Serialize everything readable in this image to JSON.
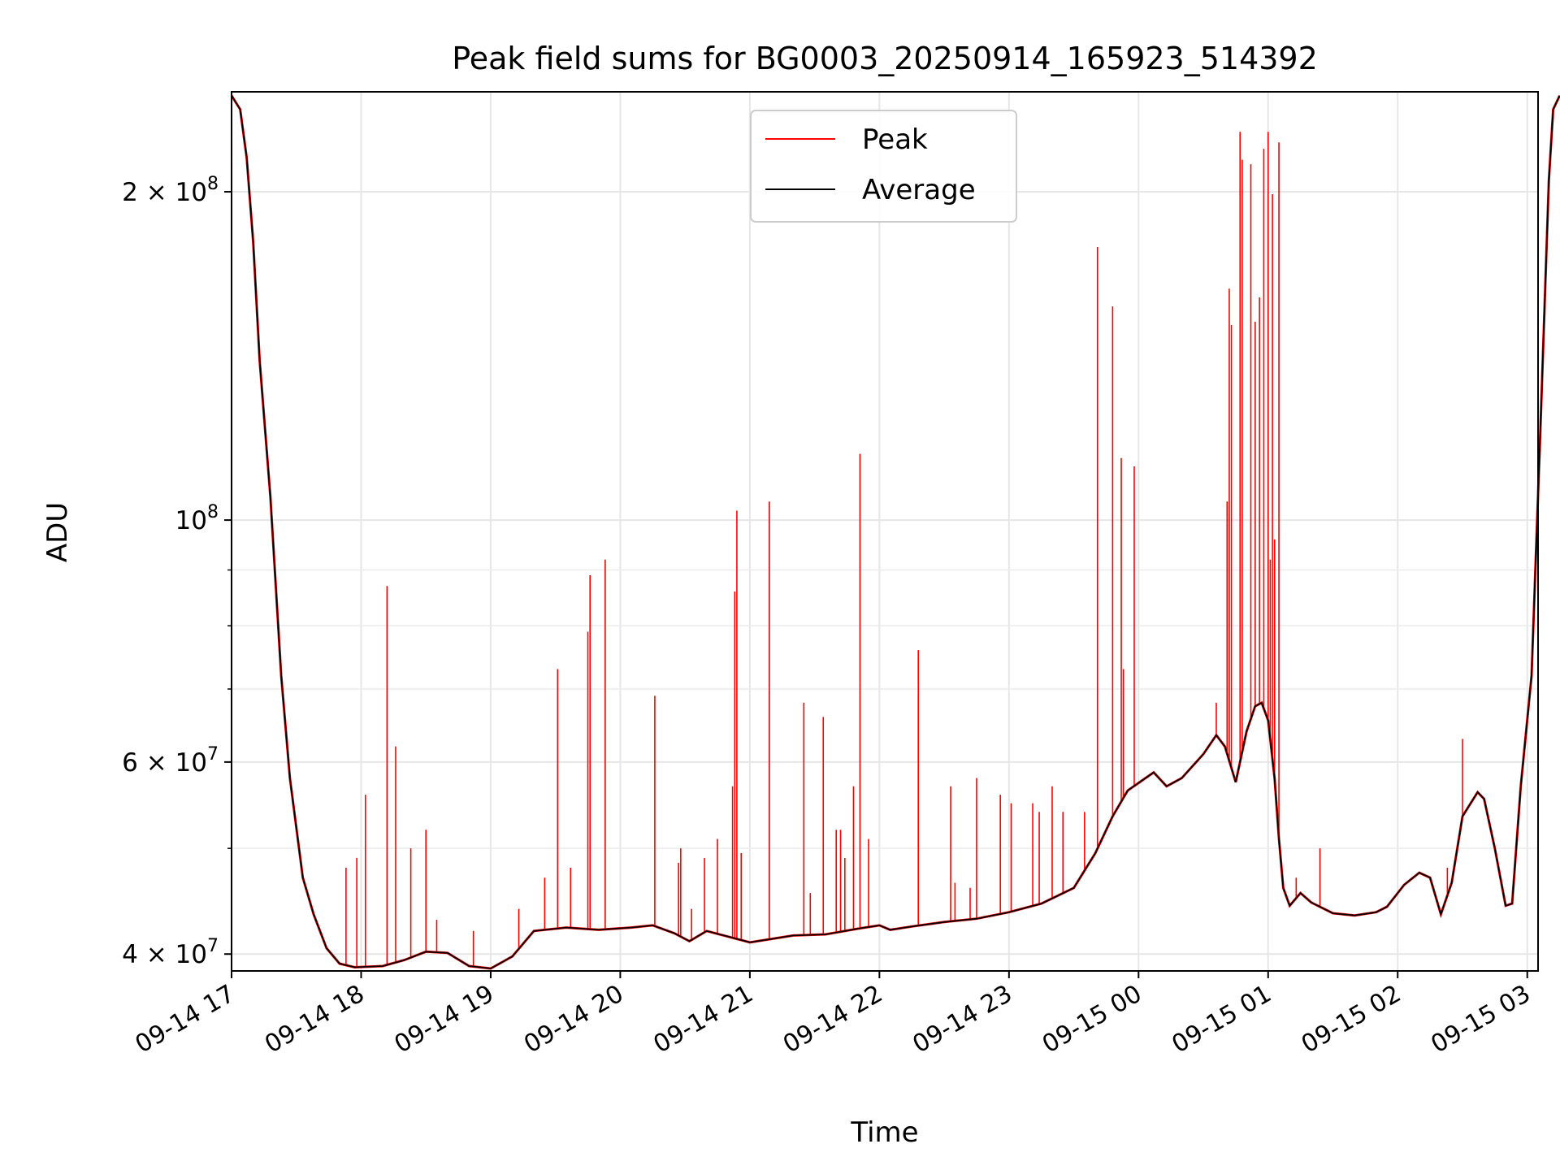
{
  "chart_data": {
    "type": "line",
    "title": "Peak field sums for BG0003_20250914_165923_514392",
    "xlabel": "Time",
    "ylabel": "ADU",
    "yscale": "log",
    "ylim": [
      38600000,
      247000000
    ],
    "xlim": [
      "2025-09-14T17:00",
      "2025-09-15T03:05"
    ],
    "grid": true,
    "legend": "top-center",
    "x_ticks": [
      {
        "t": "2025-09-14T17:00",
        "label": "09-14 17"
      },
      {
        "t": "2025-09-14T18:00",
        "label": "09-14 18"
      },
      {
        "t": "2025-09-14T19:00",
        "label": "09-14 19"
      },
      {
        "t": "2025-09-14T20:00",
        "label": "09-14 20"
      },
      {
        "t": "2025-09-14T21:00",
        "label": "09-14 21"
      },
      {
        "t": "2025-09-14T22:00",
        "label": "09-14 22"
      },
      {
        "t": "2025-09-14T23:00",
        "label": "09-14 23"
      },
      {
        "t": "2025-09-15T00:00",
        "label": "09-15 00"
      },
      {
        "t": "2025-09-15T01:00",
        "label": "09-15 01"
      },
      {
        "t": "2025-09-15T02:00",
        "label": "09-15 02"
      },
      {
        "t": "2025-09-15T03:00",
        "label": "09-15 03"
      }
    ],
    "y_ticks_major": [
      {
        "value": 40000000,
        "label": "4 × 10",
        "exp": "7"
      },
      {
        "value": 60000000,
        "label": "6 × 10",
        "exp": "7"
      },
      {
        "value": 100000000,
        "label": "10",
        "exp": "8"
      },
      {
        "value": 200000000,
        "label": "2 × 10",
        "exp": "8"
      }
    ],
    "y_ticks_minor": [
      50000000,
      70000000,
      80000000,
      90000000
    ],
    "series": [
      {
        "name": "Average",
        "color": "#000000",
        "points": [
          [
            "2025-09-14T17:00",
            245000000
          ],
          [
            "2025-09-14T17:04",
            238000000
          ],
          [
            "2025-09-14T17:07",
            215000000
          ],
          [
            "2025-09-14T17:10",
            180000000
          ],
          [
            "2025-09-14T17:13",
            140000000
          ],
          [
            "2025-09-14T17:18",
            105000000
          ],
          [
            "2025-09-14T17:23",
            72000000
          ],
          [
            "2025-09-14T17:27",
            58000000
          ],
          [
            "2025-09-14T17:33",
            47000000
          ],
          [
            "2025-09-14T17:38",
            43500000
          ],
          [
            "2025-09-14T17:44",
            40500000
          ],
          [
            "2025-09-14T17:50",
            39200000
          ],
          [
            "2025-09-14T17:57",
            38900000
          ],
          [
            "2025-09-14T18:10",
            39000000
          ],
          [
            "2025-09-14T18:20",
            39500000
          ],
          [
            "2025-09-14T18:30",
            40200000
          ],
          [
            "2025-09-14T18:40",
            40100000
          ],
          [
            "2025-09-14T18:50",
            39000000
          ],
          [
            "2025-09-14T19:00",
            38800000
          ],
          [
            "2025-09-14T19:10",
            39800000
          ],
          [
            "2025-09-14T19:20",
            42000000
          ],
          [
            "2025-09-14T19:35",
            42300000
          ],
          [
            "2025-09-14T19:50",
            42100000
          ],
          [
            "2025-09-14T20:05",
            42300000
          ],
          [
            "2025-09-14T20:15",
            42500000
          ],
          [
            "2025-09-14T20:25",
            41800000
          ],
          [
            "2025-09-14T20:32",
            41100000
          ],
          [
            "2025-09-14T20:40",
            42000000
          ],
          [
            "2025-09-14T20:48",
            41600000
          ],
          [
            "2025-09-14T21:00",
            41000000
          ],
          [
            "2025-09-14T21:10",
            41300000
          ],
          [
            "2025-09-14T21:20",
            41600000
          ],
          [
            "2025-09-14T21:35",
            41700000
          ],
          [
            "2025-09-14T21:50",
            42200000
          ],
          [
            "2025-09-14T22:00",
            42500000
          ],
          [
            "2025-09-14T22:05",
            42100000
          ],
          [
            "2025-09-14T22:15",
            42400000
          ],
          [
            "2025-09-14T22:30",
            42800000
          ],
          [
            "2025-09-14T22:45",
            43100000
          ],
          [
            "2025-09-14T23:00",
            43700000
          ],
          [
            "2025-09-14T23:15",
            44500000
          ],
          [
            "2025-09-14T23:30",
            46000000
          ],
          [
            "2025-09-14T23:40",
            49500000
          ],
          [
            "2025-09-14T23:48",
            53500000
          ],
          [
            "2025-09-14T23:55",
            56500000
          ],
          [
            "2025-09-15T00:07",
            58700000
          ],
          [
            "2025-09-15T00:13",
            57000000
          ],
          [
            "2025-09-15T00:20",
            58000000
          ],
          [
            "2025-09-15T00:30",
            61000000
          ],
          [
            "2025-09-15T00:36",
            63500000
          ],
          [
            "2025-09-15T00:40",
            62000000
          ],
          [
            "2025-09-15T00:45",
            57500000
          ],
          [
            "2025-09-15T00:50",
            64000000
          ],
          [
            "2025-09-15T00:54",
            67500000
          ],
          [
            "2025-09-15T00:57",
            68000000
          ],
          [
            "2025-09-15T01:00",
            65500000
          ],
          [
            "2025-09-15T01:03",
            58000000
          ],
          [
            "2025-09-15T01:05",
            51000000
          ],
          [
            "2025-09-15T01:07",
            46000000
          ],
          [
            "2025-09-15T01:10",
            44300000
          ],
          [
            "2025-09-15T01:15",
            45500000
          ],
          [
            "2025-09-15T01:20",
            44600000
          ],
          [
            "2025-09-15T01:30",
            43600000
          ],
          [
            "2025-09-15T01:40",
            43400000
          ],
          [
            "2025-09-15T01:50",
            43700000
          ],
          [
            "2025-09-15T01:55",
            44200000
          ],
          [
            "2025-09-15T02:03",
            46300000
          ],
          [
            "2025-09-15T02:10",
            47500000
          ],
          [
            "2025-09-15T02:15",
            47000000
          ],
          [
            "2025-09-15T02:20",
            43500000
          ],
          [
            "2025-09-15T02:25",
            46500000
          ],
          [
            "2025-09-15T02:30",
            53500000
          ],
          [
            "2025-09-15T02:37",
            56300000
          ],
          [
            "2025-09-15T02:40",
            55500000
          ],
          [
            "2025-09-15T02:45",
            50000000
          ],
          [
            "2025-09-15T02:50",
            44300000
          ],
          [
            "2025-09-15T02:53",
            44500000
          ],
          [
            "2025-09-15T02:57",
            57000000
          ],
          [
            "2025-09-15T03:02",
            72000000
          ],
          [
            "2025-09-15T03:06",
            120000000
          ],
          [
            "2025-09-15T03:10",
            205000000
          ],
          [
            "2025-09-15T03:12",
            238000000
          ],
          [
            "2025-09-15T03:15",
            245000000
          ]
        ]
      },
      {
        "name": "Peak",
        "color": "#ff0000",
        "spikes": [
          [
            "2025-09-14T17:53",
            48000000
          ],
          [
            "2025-09-14T17:58",
            49000000
          ],
          [
            "2025-09-14T18:02",
            56000000
          ],
          [
            "2025-09-14T18:12",
            87000000
          ],
          [
            "2025-09-14T18:16",
            62000000
          ],
          [
            "2025-09-14T18:23",
            50000000
          ],
          [
            "2025-09-14T18:30",
            52000000
          ],
          [
            "2025-09-14T18:35",
            43000000
          ],
          [
            "2025-09-14T18:52",
            42000000
          ],
          [
            "2025-09-14T19:13",
            44000000
          ],
          [
            "2025-09-14T19:25",
            47000000
          ],
          [
            "2025-09-14T19:31",
            73000000
          ],
          [
            "2025-09-14T19:37",
            48000000
          ],
          [
            "2025-09-14T19:45",
            79000000
          ],
          [
            "2025-09-14T19:46",
            89000000
          ],
          [
            "2025-09-14T19:53",
            92000000
          ],
          [
            "2025-09-14T20:16",
            69000000
          ],
          [
            "2025-09-14T20:27",
            48500000
          ],
          [
            "2025-09-14T20:28",
            50000000
          ],
          [
            "2025-09-14T20:33",
            44000000
          ],
          [
            "2025-09-14T20:39",
            49000000
          ],
          [
            "2025-09-14T20:45",
            51000000
          ],
          [
            "2025-09-14T20:52",
            57000000
          ],
          [
            "2025-09-14T20:53",
            86000000
          ],
          [
            "2025-09-14T20:54",
            102000000
          ],
          [
            "2025-09-14T20:56",
            49500000
          ],
          [
            "2025-09-14T21:09",
            104000000
          ],
          [
            "2025-09-14T21:25",
            68000000
          ],
          [
            "2025-09-14T21:28",
            45500000
          ],
          [
            "2025-09-14T21:34",
            66000000
          ],
          [
            "2025-09-14T21:40",
            52000000
          ],
          [
            "2025-09-14T21:42",
            52000000
          ],
          [
            "2025-09-14T21:44",
            49000000
          ],
          [
            "2025-09-14T21:48",
            57000000
          ],
          [
            "2025-09-14T21:51",
            115000000
          ],
          [
            "2025-09-14T21:55",
            51000000
          ],
          [
            "2025-09-14T22:18",
            76000000
          ],
          [
            "2025-09-14T22:33",
            57000000
          ],
          [
            "2025-09-14T22:35",
            46500000
          ],
          [
            "2025-09-14T22:42",
            46000000
          ],
          [
            "2025-09-14T22:45",
            58000000
          ],
          [
            "2025-09-14T22:56",
            56000000
          ],
          [
            "2025-09-14T23:01",
            55000000
          ],
          [
            "2025-09-14T23:11",
            55000000
          ],
          [
            "2025-09-14T23:14",
            54000000
          ],
          [
            "2025-09-14T23:20",
            57000000
          ],
          [
            "2025-09-14T23:25",
            54000000
          ],
          [
            "2025-09-14T23:35",
            54000000
          ],
          [
            "2025-09-14T23:41",
            178000000
          ],
          [
            "2025-09-14T23:48",
            157000000
          ],
          [
            "2025-09-14T23:52",
            114000000
          ],
          [
            "2025-09-14T23:53",
            73000000
          ],
          [
            "2025-09-14T23:58",
            112000000
          ],
          [
            "2025-09-15T00:36",
            68000000
          ],
          [
            "2025-09-15T00:41",
            104000000
          ],
          [
            "2025-09-15T00:42",
            163000000
          ],
          [
            "2025-09-15T00:43",
            151000000
          ],
          [
            "2025-09-15T00:47",
            227000000
          ],
          [
            "2025-09-15T00:48",
            214000000
          ],
          [
            "2025-09-15T00:52",
            212000000
          ],
          [
            "2025-09-15T00:54",
            152000000
          ],
          [
            "2025-09-15T00:56",
            160000000
          ],
          [
            "2025-09-15T00:58",
            219000000
          ],
          [
            "2025-09-15T01:00",
            227000000
          ],
          [
            "2025-09-15T01:01",
            92000000
          ],
          [
            "2025-09-15T01:02",
            199000000
          ],
          [
            "2025-09-15T01:03",
            96000000
          ],
          [
            "2025-09-15T01:05",
            222000000
          ],
          [
            "2025-09-15T01:13",
            47000000
          ],
          [
            "2025-09-15T01:24",
            50000000
          ],
          [
            "2025-09-15T02:23",
            48000000
          ],
          [
            "2025-09-15T02:30",
            63000000
          ]
        ]
      }
    ]
  }
}
